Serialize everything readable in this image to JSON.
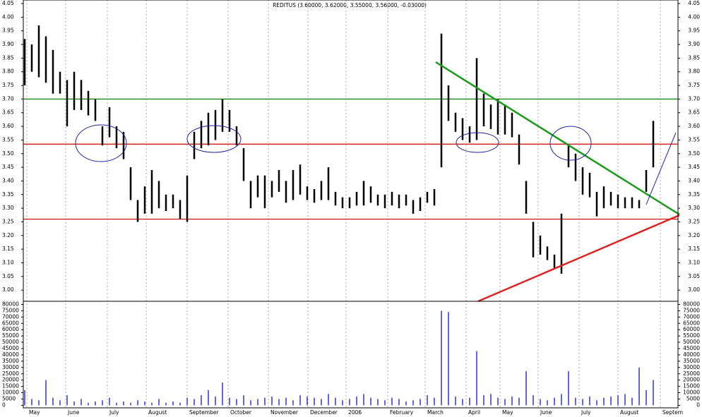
{
  "chart_data": [
    {
      "type": "hlc",
      "title": "REDITUS (3.60000, 3.62000, 3.55000, 3.56000, -0.03000)",
      "color": "#000000",
      "high": [
        3.92,
        3.9,
        3.97,
        3.93,
        3.88,
        3.8,
        3.77,
        3.8,
        3.77,
        3.73,
        3.7,
        3.6,
        3.67,
        3.6,
        3.58,
        3.45,
        3.33,
        3.38,
        3.44,
        3.4,
        3.35,
        3.35,
        3.33,
        3.42,
        3.58,
        3.62,
        3.65,
        3.66,
        3.7,
        3.66,
        3.6,
        3.52,
        3.4,
        3.42,
        3.42,
        3.4,
        3.44,
        3.4,
        3.44,
        3.46,
        3.38,
        3.37,
        3.4,
        3.45,
        3.36,
        3.34,
        3.34,
        3.36,
        3.4,
        3.38,
        3.35,
        3.35,
        3.36,
        3.35,
        3.35,
        3.33,
        3.34,
        3.36,
        3.37,
        3.94,
        3.75,
        3.65,
        3.63,
        3.6,
        3.85,
        3.72,
        3.68,
        3.7,
        3.68,
        3.65,
        3.57,
        3.4,
        3.25,
        3.2,
        3.16,
        3.13,
        3.28,
        3.53,
        3.5,
        3.45,
        3.43,
        3.36,
        3.38,
        3.36,
        3.35,
        3.34,
        3.34,
        3.33,
        3.44,
        3.62
      ],
      "low": [
        3.75,
        3.8,
        3.78,
        3.76,
        3.72,
        3.72,
        3.6,
        3.66,
        3.66,
        3.64,
        3.62,
        3.53,
        3.56,
        3.52,
        3.48,
        3.33,
        3.25,
        3.28,
        3.28,
        3.3,
        3.29,
        3.3,
        3.26,
        3.25,
        3.48,
        3.52,
        3.53,
        3.55,
        3.58,
        3.58,
        3.53,
        3.4,
        3.3,
        3.34,
        3.3,
        3.34,
        3.36,
        3.32,
        3.33,
        3.35,
        3.33,
        3.32,
        3.33,
        3.33,
        3.31,
        3.3,
        3.3,
        3.31,
        3.31,
        3.32,
        3.31,
        3.3,
        3.31,
        3.3,
        3.31,
        3.28,
        3.29,
        3.32,
        3.31,
        3.45,
        3.62,
        3.58,
        3.55,
        3.54,
        3.55,
        3.6,
        3.59,
        3.57,
        3.57,
        3.56,
        3.46,
        3.28,
        3.12,
        3.13,
        3.11,
        3.08,
        3.06,
        3.45,
        3.4,
        3.35,
        3.34,
        3.27,
        3.3,
        3.31,
        3.3,
        3.3,
        3.3,
        3.3,
        3.36,
        3.45
      ],
      "xlim": [
        -0.2,
        92.5
      ],
      "ylim": [
        2.959,
        4.063
      ],
      "xticks": [
        {
          "value": 0.3,
          "label": "May"
        },
        {
          "value": 5.8,
          "label": "June"
        },
        {
          "value": 11.7,
          "label": "July"
        },
        {
          "value": 17.2,
          "label": "August"
        },
        {
          "value": 23,
          "label": "September"
        },
        {
          "value": 28.8,
          "label": "October"
        },
        {
          "value": 34.5,
          "label": "November"
        },
        {
          "value": 40.1,
          "label": "December"
        },
        {
          "value": 45.5,
          "label": "2006"
        },
        {
          "value": 51.4,
          "label": "February"
        },
        {
          "value": 56.7,
          "label": "March"
        },
        {
          "value": 62.5,
          "label": "April"
        },
        {
          "value": 67.3,
          "label": "May"
        },
        {
          "value": 72.7,
          "label": "June"
        },
        {
          "value": 78.5,
          "label": "July"
        },
        {
          "value": 84,
          "label": "August"
        },
        {
          "value": 90,
          "label": "Septem"
        }
      ],
      "yticks": [
        {
          "value": 3,
          "label": "3.00"
        },
        3.05,
        {
          "value": 3.1,
          "label": "3.10"
        },
        3.15,
        {
          "value": 3.2,
          "label": "3.20"
        },
        3.25,
        {
          "value": 3.3,
          "label": "3.30"
        },
        3.35,
        {
          "value": 3.4,
          "label": "3.40"
        },
        3.45,
        {
          "value": 3.5,
          "label": "3.50"
        },
        3.55,
        {
          "value": 3.6,
          "label": "3.60"
        },
        3.65,
        {
          "value": 3.7,
          "label": "3.70"
        },
        3.75,
        {
          "value": 3.8,
          "label": "3.80"
        },
        3.85,
        {
          "value": 3.9,
          "label": "3.90"
        },
        3.95,
        {
          "value": 4,
          "label": "4.00"
        },
        4.05
      ],
      "hlines": [
        {
          "value": 3.7,
          "color": "#008000"
        },
        {
          "value": 3.535,
          "color": "#cc0000"
        },
        {
          "value": 3.26,
          "color": "#cc0000"
        }
      ]
    },
    {
      "type": "volume",
      "color": "#0000cc",
      "values": [
        12000,
        5000,
        4000,
        20000,
        6000,
        4000,
        8000,
        3000,
        5000,
        2000,
        3000,
        4000,
        6000,
        2000,
        3000,
        2000,
        4000,
        3000,
        2000,
        5000,
        2000,
        3000,
        2000,
        6000,
        5000,
        8000,
        12000,
        7000,
        18000,
        6000,
        5000,
        8000,
        4000,
        5000,
        6000,
        7000,
        5000,
        6000,
        4000,
        8000,
        7000,
        6000,
        5000,
        9000,
        6000,
        4000,
        5000,
        7000,
        9000,
        6000,
        5000,
        4000,
        6000,
        5000,
        3000,
        4000,
        5000,
        8000,
        6000,
        75000,
        74000,
        7000,
        5000,
        6000,
        43000,
        8000,
        9000,
        6000,
        5000,
        7000,
        6000,
        27000,
        8000,
        5000,
        4000,
        6000,
        9000,
        27000,
        6000,
        5000,
        7000,
        4000,
        6000,
        7000,
        8000,
        9000,
        6000,
        30000,
        12000,
        20000
      ],
      "ylim": [
        -2000,
        82500
      ],
      "yticks": [
        0,
        5000,
        10000,
        15000,
        20000,
        25000,
        30000,
        35000,
        40000,
        45000,
        50000,
        55000,
        60000,
        65000,
        70000,
        75000,
        80000
      ]
    }
  ]
}
